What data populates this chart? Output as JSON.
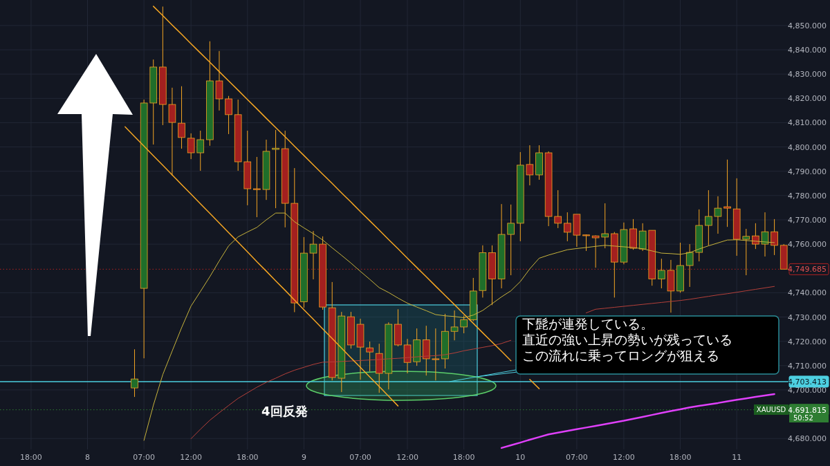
{
  "chart_data": {
    "type": "candlestick",
    "categories": [
      null,
      "18:00",
      null,
      null,
      null,
      null,
      null,
      "8",
      null,
      null,
      null,
      null,
      null,
      "07:00",
      null,
      null,
      null,
      null,
      "12:00",
      null,
      null,
      null,
      null,
      null,
      "18:00",
      null,
      null,
      null,
      null,
      null,
      "9",
      null,
      null,
      null,
      null,
      null,
      "07:00",
      null,
      null,
      null,
      null,
      "12:00",
      null,
      null,
      null,
      null,
      null,
      "18:00",
      null,
      null,
      null,
      null,
      null,
      "10",
      null,
      null,
      null,
      null,
      null,
      "07:00",
      null,
      null,
      null,
      null,
      "12:00",
      null,
      null,
      null,
      null,
      null,
      "18:00",
      null,
      null,
      null,
      null,
      null,
      "11",
      null,
      null,
      null,
      null,
      null
    ],
    "ohlc": [
      null,
      null,
      null,
      null,
      null,
      null,
      null,
      null,
      null,
      null,
      null,
      null,
      [
        4700.8,
        4716.7,
        4697.1,
        4704.5
      ],
      [
        4741.8,
        4819.5,
        4713.0,
        4818.1
      ],
      [
        4818.1,
        4836.0,
        4801.0,
        4832.9
      ],
      [
        4832.9,
        4857.8,
        4809.0,
        4817.5
      ],
      [
        4817.5,
        4824.4,
        4788.2,
        4810.1
      ],
      [
        4809.8,
        4825.0,
        4799.3,
        4803.9
      ],
      [
        4803.6,
        4805.6,
        4795.0,
        4797.6
      ],
      [
        4797.6,
        4806.7,
        4790.2,
        4803.0
      ],
      [
        4803.0,
        4843.5,
        4800.5,
        4827.2
      ],
      [
        4827.2,
        4839.5,
        4815.0,
        4819.8
      ],
      [
        4819.8,
        4821.0,
        4805.3,
        4813.3
      ],
      [
        4813.3,
        4819.5,
        4790.2,
        4793.9
      ],
      [
        4793.9,
        4806.7,
        4776.0,
        4782.8
      ],
      [
        4782.8,
        4795.9,
        4771.1,
        4782.6
      ],
      [
        4782.5,
        4803.0,
        4778.2,
        4798.2
      ],
      [
        4799.0,
        4807.0,
        4774.8,
        4799.5
      ],
      [
        4799.3,
        4806.7,
        4766.9,
        4776.8
      ],
      [
        4776.8,
        4791.3,
        4732.0,
        4735.8
      ],
      [
        4736.3,
        4762.9,
        4733.8,
        4756.3
      ],
      [
        4756.3,
        4765.4,
        4745.5,
        4760.0
      ],
      [
        4760.0,
        4763.2,
        4733.0,
        4734.1
      ],
      [
        4733.8,
        4744.4,
        4703.9,
        4705.1
      ],
      [
        4704.8,
        4732.1,
        4699.1,
        4730.4
      ],
      [
        4730.1,
        4732.1,
        4717.0,
        4718.5
      ],
      [
        4727.0,
        4729.3,
        4704.2,
        4717.6
      ],
      [
        4717.3,
        4719.9,
        4707.6,
        4715.6
      ],
      [
        4715.0,
        4719.0,
        4698.8,
        4706.8
      ],
      [
        4706.8,
        4727.8,
        4700.2,
        4727.0
      ],
      [
        4727.0,
        4733.2,
        4717.9,
        4718.5
      ],
      [
        4718.5,
        4721.0,
        4706.8,
        4711.3
      ],
      [
        4711.6,
        4725.3,
        4709.9,
        4720.6
      ],
      [
        4720.6,
        4726.4,
        4705.9,
        4712.8
      ],
      [
        4712.8,
        4725.3,
        4703.9,
        4712.7
      ],
      [
        4712.8,
        4731.3,
        4708.8,
        4724.1
      ],
      [
        4724.1,
        4732.7,
        4720.4,
        4725.9
      ],
      [
        4725.9,
        4730.6,
        4723.3,
        4728.9
      ],
      [
        4728.9,
        4746.1,
        4728.3,
        4740.7
      ],
      [
        4740.9,
        4759.5,
        4738.0,
        4756.5
      ],
      [
        4756.5,
        4759.5,
        4734.9,
        4745.7
      ],
      [
        4745.7,
        4776.5,
        4741.8,
        4764.0
      ],
      [
        4764.0,
        4776.3,
        4747.2,
        4768.6
      ],
      [
        4768.6,
        4797.9,
        4761.2,
        4792.5
      ],
      [
        4792.8,
        4800.7,
        4784.2,
        4788.5
      ],
      [
        4788.5,
        4800.7,
        4786.5,
        4797.6
      ],
      [
        4797.6,
        4798.2,
        4767.4,
        4771.4
      ],
      [
        4771.4,
        4782.2,
        4766.6,
        4768.6
      ],
      [
        4768.6,
        4773.1,
        4761.2,
        4764.9
      ],
      [
        4772.3,
        4772.3,
        4758.9,
        4763.7
      ],
      [
        4763.8,
        4764.0,
        4757.2,
        4763.6
      ],
      [
        4763.4,
        4763.6,
        4750.3,
        4762.6
      ],
      [
        4762.9,
        4776.8,
        4758.3,
        4764.3
      ],
      [
        4764.3,
        4765.0,
        4738.0,
        4752.6
      ],
      [
        4752.6,
        4768.9,
        4751.7,
        4766.0
      ],
      [
        4766.3,
        4770.3,
        4757.7,
        4758.3
      ],
      [
        4758.0,
        4768.6,
        4757.2,
        4765.4
      ],
      [
        4765.7,
        4765.7,
        4742.9,
        4745.7
      ],
      [
        4745.7,
        4754.0,
        4741.8,
        4749.2
      ],
      [
        4749.2,
        4753.5,
        4731.8,
        4740.7
      ],
      [
        4740.7,
        4760.6,
        4740.0,
        4751.2
      ],
      [
        4751.2,
        4760.0,
        4742.4,
        4756.6
      ],
      [
        4756.6,
        4774.3,
        4752.9,
        4767.7
      ],
      [
        4767.7,
        4782.2,
        4759.5,
        4771.4
      ],
      [
        4771.4,
        4779.7,
        4764.3,
        4774.8
      ],
      [
        4775.4,
        4794.8,
        4767.1,
        4774.8
      ],
      [
        4774.5,
        4787.1,
        4755.2,
        4762.0
      ],
      [
        4762.0,
        4766.3,
        4747.2,
        4763.2
      ],
      [
        4763.4,
        4768.6,
        4758.0,
        4760.0
      ],
      [
        4760.0,
        4773.1,
        4754.9,
        4765.1
      ],
      [
        4765.1,
        4770.3,
        4755.5,
        4759.5
      ],
      [
        4759.5,
        4760.0,
        4749.7,
        4749.7
      ]
    ],
    "colors": [
      null,
      null,
      null,
      null,
      null,
      null,
      null,
      null,
      null,
      null,
      null,
      null,
      "#1f6e2a",
      "#1f6e2a",
      "#1f6e2a",
      "#a3201f",
      "#a3201f",
      "#a3201f",
      "#a3201f",
      "#1f6e2a",
      "#1f6e2a",
      "#a3201f",
      "#a3201f",
      "#a3201f",
      "#a3201f",
      "#a3201f",
      "#1f6e2a",
      "#1f6e2a",
      "#a3201f",
      "#a3201f",
      "#1f6e2a",
      "#1f6e2a",
      "#a3201f",
      "#a3201f",
      "#1f6e2a",
      "#a3201f",
      "#a3201f",
      "#a3201f",
      "#a3201f",
      "#1f6e2a",
      "#a3201f",
      "#a3201f",
      "#1f6e2a",
      "#a3201f",
      "#a3201f",
      "#1f6e2a",
      "#1f6e2a",
      "#1f6e2a",
      "#1f6e2a",
      "#1f6e2a",
      "#a3201f",
      "#1f6e2a",
      "#1f6e2a",
      "#1f6e2a",
      "#a3201f",
      "#1f6e2a",
      "#a3201f",
      "#a3201f",
      "#a3201f",
      "#a3201f",
      "#a3201f",
      "#a3201f",
      "#1f6e2a",
      "#a3201f",
      "#1f6e2a",
      "#a3201f",
      "#1f6e2a",
      "#a3201f",
      "#1f6e2a",
      "#a3201f",
      "#1f6e2a",
      "#1f6e2a",
      "#1f6e2a",
      "#1f6e2a",
      "#1f6e2a",
      "#a3201f",
      "#a3201f",
      "#1f6e2a",
      "#a3201f",
      "#1f6e2a",
      "#a3201f",
      "#a3201f"
    ],
    "series": [
      {
        "type": "line",
        "color": "#c8b43c",
        "values": [
          null,
          null,
          null,
          null,
          null,
          null,
          null,
          null,
          null,
          null,
          null,
          null,
          null,
          4679.2,
          4693.7,
          4706.3,
          4716.0,
          4725.6,
          4734.5,
          4740.5,
          4746.6,
          4753.1,
          4759.3,
          4763.0,
          4765.0,
          4766.9,
          4770.0,
          4772.8,
          4772.8,
          4769.2,
          4766.7,
          4764.3,
          4761.7,
          4758.5,
          4755.4,
          4752.2,
          4748.8,
          4745.5,
          4742.1,
          4740.1,
          4737.8,
          4735.7,
          4734.1,
          4732.6,
          4731.0,
          4730.5,
          4730.2,
          4729.7,
          4730.8,
          4732.7,
          4735.5,
          4738.3,
          4740.8,
          4744.6,
          4749.8,
          4754.2,
          4755.5,
          4756.6,
          4757.7,
          4758.2,
          4758.6,
          4759.1,
          4759.5,
          4759.2,
          4758.9,
          4758.6,
          4758.1,
          4757.2,
          4756.3,
          4756.1,
          4755.8,
          4756.5,
          4758.0,
          4759.3,
          4760.5,
          4761.7,
          4761.8,
          4761.5,
          4761.2,
          4760.9,
          4760.6,
          null
        ]
      },
      {
        "type": "line",
        "color": "#b5403a",
        "values": [
          null,
          null,
          null,
          null,
          null,
          null,
          null,
          null,
          null,
          null,
          null,
          null,
          null,
          null,
          null,
          null,
          null,
          null,
          4679.9,
          4683.8,
          4687.5,
          4690.6,
          4693.6,
          4696.5,
          4698.8,
          4701.1,
          4703.1,
          4704.8,
          4706.6,
          4708.1,
          4709.3,
          4710.5,
          4711.4,
          4711.5,
          4711.7,
          4711.9,
          4712.1,
          4712.3,
          4712.5,
          4712.8,
          4713.0,
          4713.3,
          4713.6,
          4713.9,
          4714.1,
          4714.5,
          4715.2,
          4716.1,
          4716.8,
          4717.5,
          4718.2,
          4719.1,
          4720.4,
          null,
          null,
          null,
          null,
          null,
          null,
          null,
          4731.7,
          4733.2,
          4733.6,
          4734.0,
          4734.4,
          4734.8,
          4735.2,
          4735.6,
          4736.0,
          4736.4,
          4736.8,
          4737.3,
          4737.9,
          4738.5,
          4739.1,
          4739.6,
          4740.2,
          4740.8,
          4741.4,
          4742.0,
          4742.6,
          null
        ]
      },
      {
        "type": "line",
        "color": "#e040fb",
        "values": [
          null,
          null,
          null,
          null,
          null,
          null,
          null,
          null,
          null,
          null,
          null,
          null,
          null,
          null,
          null,
          null,
          null,
          null,
          null,
          null,
          null,
          null,
          null,
          null,
          null,
          null,
          null,
          null,
          null,
          null,
          null,
          null,
          null,
          null,
          null,
          null,
          null,
          null,
          null,
          null,
          null,
          null,
          null,
          null,
          null,
          null,
          null,
          null,
          null,
          null,
          null,
          4676.1,
          4677.2,
          4678.3,
          4679.5,
          4680.6,
          4681.7,
          4682.4,
          4683.1,
          4683.8,
          4684.5,
          4685.2,
          4685.9,
          4686.6,
          4687.3,
          4688.1,
          4688.9,
          4689.7,
          4690.5,
          4691.3,
          4692.0,
          4692.8,
          4693.4,
          4694.0,
          4694.6,
          4695.3,
          4695.9,
          4696.5,
          4697.1,
          4697.7,
          4698.3,
          null
        ]
      },
      {
        "type": "line",
        "color": "#f5a623",
        "values": [
          null,
          null,
          null,
          null,
          null,
          null,
          null,
          null,
          null,
          null,
          null,
          null,
          null,
          null,
          4857.9,
          4854.1,
          4850.2,
          4846.4,
          4842.5,
          4838.7,
          4834.9,
          4831.0,
          4827.2,
          4823.4,
          4819.5,
          4815.7,
          4811.8,
          4808.0,
          4804.2,
          4800.3,
          4796.5,
          4792.6,
          4788.8,
          4785.0,
          4781.1,
          4777.3,
          4773.4,
          4769.6,
          4765.8,
          4761.9,
          4758.1,
          4754.2,
          4750.4,
          4746.6,
          4742.7,
          4738.9,
          4735.1,
          4731.2,
          4727.4,
          4723.5,
          4719.7,
          4715.9,
          4712.0,
          null,
          4704.3,
          4700.5,
          null,
          null,
          null,
          null,
          null,
          null,
          null,
          null,
          null,
          null,
          null,
          null,
          null,
          null,
          null,
          null,
          null,
          null,
          null,
          null,
          null,
          null,
          null,
          null,
          null,
          null
        ]
      },
      {
        "type": "line",
        "color": "#f5a623",
        "values": [
          null,
          null,
          null,
          null,
          null,
          null,
          null,
          null,
          null,
          null,
          null,
          4808.3,
          4804.3,
          4800.4,
          4796.4,
          4792.5,
          4788.5,
          4784.5,
          4780.6,
          4776.6,
          4772.7,
          4768.7,
          4764.7,
          4760.8,
          4756.8,
          4752.8,
          4748.9,
          4744.9,
          4741.0,
          4737.0,
          4733.0,
          4729.1,
          4725.1,
          4721.2,
          4717.2,
          4713.2,
          4709.3,
          4705.3,
          4701.4,
          4697.4,
          4693.4,
          null,
          null,
          null,
          null,
          null,
          null,
          null,
          null,
          null,
          null,
          null,
          null,
          null,
          null,
          null,
          null,
          null,
          null,
          null,
          null,
          null,
          null,
          null,
          null,
          null,
          null,
          null,
          null,
          null,
          null,
          null,
          null,
          null,
          null,
          null,
          null,
          null,
          null,
          null,
          null,
          null
        ]
      }
    ],
    "ylim": [
      4675.5,
      4860.5
    ],
    "yticks": [
      {
        "value": 4680,
        "label": "4,680.000"
      },
      {
        "value": 4700,
        "label": "4,700.000"
      },
      {
        "value": 4710,
        "label": "4,710.000"
      },
      {
        "value": 4720,
        "label": "4,720.000"
      },
      {
        "value": 4730,
        "label": "4,730.000"
      },
      {
        "value": 4740,
        "label": "4,740.000"
      },
      {
        "value": 4760,
        "label": "4,760.000"
      },
      {
        "value": 4770,
        "label": "4,770.000"
      },
      {
        "value": 4780,
        "label": "4,780.000"
      },
      {
        "value": 4790,
        "label": "4,790.000"
      },
      {
        "value": 4800,
        "label": "4,800.000"
      },
      {
        "value": 4810,
        "label": "4,810.000"
      },
      {
        "value": 4820,
        "label": "4,820.000"
      },
      {
        "value": 4830,
        "label": "4,830.000"
      },
      {
        "value": 4840,
        "label": "4,840.000"
      },
      {
        "value": 4850,
        "label": "4,850.000"
      }
    ],
    "grid": true,
    "ref_lines": [
      {
        "axis": "y",
        "value": 4703.413,
        "label": "4,703.413",
        "color": "#4dd0e1",
        "line_style": "solid"
      },
      {
        "axis": "y",
        "value": 4749.685,
        "label": "4,749.685",
        "color": "#b22222",
        "line_style": "dotted"
      },
      {
        "axis": "y",
        "value": 4691.815,
        "label": "4,691.815",
        "color": "#2e7d32",
        "line_style": "dotted"
      }
    ],
    "annotations": [
      "4回反発",
      "下髭が連発している。",
      "直近の強い上昇の勢いが残っている",
      {
        "text": "この流れに乗ってロングが狙える",
        "y": 4703.413
      },
      "XAUUSD",
      "50:52"
    ]
  }
}
